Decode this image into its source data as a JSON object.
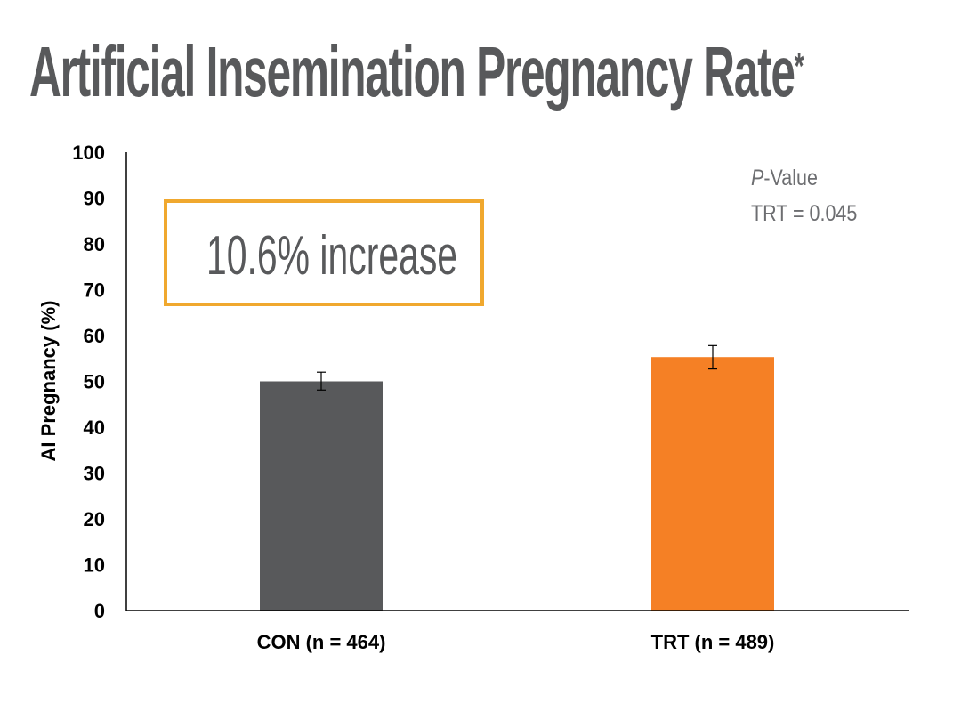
{
  "page": {
    "title": "Artificial Insemination Pregnancy Rate",
    "title_mark": "*"
  },
  "callout": {
    "text": "10.6% increase",
    "border_color": "#f0a82e"
  },
  "pvalue": {
    "label_italic": "P",
    "label_rest": "-Value",
    "value_text": "TRT = 0.045"
  },
  "chart_data": {
    "type": "bar",
    "categories": [
      "CON (n = 464)",
      "TRT (n = 489)"
    ],
    "values": [
      50.0,
      55.3
    ],
    "error_bars": [
      [
        48.1,
        52.0
      ],
      [
        52.7,
        57.8
      ]
    ],
    "colors": [
      "#58595b",
      "#f58025"
    ],
    "title": "",
    "xlabel": "",
    "ylabel": "AI Pregnancy (%)",
    "ylim": [
      0,
      100
    ],
    "yticks": [
      0,
      10,
      20,
      30,
      40,
      50,
      60,
      70,
      80,
      90,
      100
    ],
    "grid": false,
    "legend": "none"
  }
}
